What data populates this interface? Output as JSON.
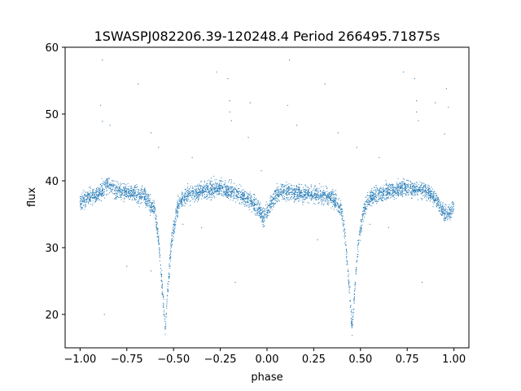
{
  "chart_data": {
    "type": "scatter",
    "title": "1SWASPJ082206.39-120248.4 Period 266495.71875s",
    "xlabel": "phase",
    "ylabel": "flux",
    "xlim": [
      -1.08,
      1.08
    ],
    "ylim": [
      15,
      60
    ],
    "xticks": [
      -1.0,
      -0.75,
      -0.5,
      -0.25,
      0.0,
      0.25,
      0.5,
      0.75,
      1.0
    ],
    "xtick_labels": [
      "−1.00",
      "−0.75",
      "−0.50",
      "−0.25",
      "0.00",
      "0.25",
      "0.50",
      "0.75",
      "1.00"
    ],
    "yticks": [
      20,
      30,
      40,
      50,
      60
    ],
    "ytick_labels": [
      "20",
      "30",
      "40",
      "50",
      "60"
    ],
    "grid": false,
    "point_color": "#1f77b4",
    "series": [
      {
        "profile_x": [
          -1.0,
          -0.9,
          -0.85,
          -0.8,
          -0.7,
          -0.65,
          -0.6,
          -0.58,
          -0.56,
          -0.545,
          -0.53,
          -0.51,
          -0.48,
          -0.45,
          -0.35,
          -0.25,
          -0.15,
          -0.1,
          -0.05,
          -0.02,
          0.0,
          0.02,
          0.05,
          0.1,
          0.15,
          0.25,
          0.35,
          0.4,
          0.42,
          0.44,
          0.455,
          0.47,
          0.49,
          0.52,
          0.55,
          0.65,
          0.75,
          0.85,
          0.9,
          0.95,
          0.98,
          1.0
        ],
        "profile_y": [
          37.0,
          38.0,
          39.5,
          38.5,
          38.0,
          37.5,
          35.5,
          31.0,
          24.0,
          18.0,
          24.0,
          31.0,
          36.0,
          37.5,
          38.5,
          39.0,
          38.0,
          37.2,
          36.0,
          34.5,
          35.2,
          36.5,
          38.0,
          38.5,
          38.2,
          38.0,
          37.5,
          35.5,
          31.0,
          24.0,
          18.0,
          24.0,
          31.0,
          36.0,
          37.5,
          38.5,
          39.0,
          38.5,
          37.5,
          35.0,
          35.0,
          36.5
        ]
      }
    ],
    "outliers": [
      [
        -0.88,
        58.1
      ],
      [
        -0.89,
        51.3
      ],
      [
        -0.88,
        48.9
      ],
      [
        -0.84,
        48.3
      ],
      [
        -0.87,
        20.0
      ],
      [
        -0.69,
        54.5
      ],
      [
        -0.62,
        47.2
      ],
      [
        -0.58,
        45.0
      ],
      [
        -0.27,
        56.3
      ],
      [
        -0.21,
        55.3
      ],
      [
        -0.2,
        52.0
      ],
      [
        -0.2,
        50.3
      ],
      [
        -0.19,
        49.0
      ],
      [
        -0.09,
        51.7
      ],
      [
        0.12,
        58.1
      ],
      [
        0.11,
        51.3
      ],
      [
        0.16,
        48.3
      ],
      [
        0.31,
        54.5
      ],
      [
        0.38,
        47.2
      ],
      [
        0.73,
        56.3
      ],
      [
        0.79,
        55.3
      ],
      [
        0.8,
        52.0
      ],
      [
        0.8,
        50.3
      ],
      [
        0.81,
        49.0
      ],
      [
        0.9,
        51.7
      ],
      [
        0.96,
        53.8
      ],
      [
        0.95,
        47.0
      ],
      [
        -0.35,
        33.0
      ],
      [
        0.65,
        33.0
      ],
      [
        -0.17,
        24.8
      ],
      [
        0.83,
        24.8
      ],
      [
        -0.4,
        43.5
      ],
      [
        0.6,
        43.5
      ],
      [
        -0.1,
        46.5
      ],
      [
        0.48,
        45.0
      ],
      [
        0.97,
        51.0
      ],
      [
        -0.03,
        41.5
      ],
      [
        -0.45,
        33.5
      ],
      [
        0.55,
        33.5
      ],
      [
        -0.75,
        27.2
      ],
      [
        0.27,
        31.2
      ],
      [
        -0.62,
        26.5
      ]
    ]
  }
}
